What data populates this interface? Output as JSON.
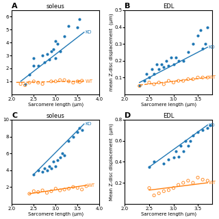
{
  "chart_data": [
    {
      "type": "scatter",
      "panel_label": "A",
      "title": "soleus",
      "xlabel": "Sarcomere length (μm)",
      "xlim": [
        2.0,
        4.0
      ],
      "ylim": [
        0.0,
        6.5
      ],
      "xticks": [
        {
          "value": 2,
          "label": "2.0"
        },
        2.5,
        {
          "value": 3,
          "label": "3.0"
        },
        3.5,
        {
          "value": 4,
          "label": "4.0"
        }
      ],
      "yticks": [
        1,
        2,
        3,
        4,
        5,
        6
      ],
      "series": [
        {
          "name": "KO",
          "type": "scatter",
          "marker": "filled",
          "x": [
            2.3,
            2.4,
            2.5,
            2.5,
            2.6,
            2.7,
            2.75,
            2.8,
            2.85,
            2.9,
            2.95,
            3.0,
            3.0,
            3.05,
            3.1,
            3.2,
            3.3,
            3.5,
            3.55
          ],
          "values": [
            0.8,
            1.5,
            2.2,
            2.8,
            2.2,
            3.0,
            2.5,
            3.1,
            2.7,
            3.3,
            3.5,
            4.1,
            2.8,
            3.9,
            3.3,
            4.5,
            5.3,
            5.2,
            5.8
          ]
        },
        {
          "name": "WT",
          "type": "scatter",
          "marker": "open",
          "x": [
            2.2,
            2.3,
            2.4,
            2.5,
            2.6,
            2.7,
            2.9,
            3.0,
            3.1,
            3.2,
            3.3,
            3.4,
            3.5,
            3.55,
            3.6
          ],
          "values": [
            0.8,
            0.7,
            0.9,
            1.0,
            0.9,
            0.8,
            1.0,
            1.0,
            1.1,
            1.1,
            1.0,
            0.9,
            1.0,
            0.95,
            1.05
          ]
        },
        {
          "name": "KO",
          "type": "line",
          "line_style": "solid",
          "x": [
            2.2,
            3.65
          ],
          "values": [
            1.0,
            4.8
          ]
        },
        {
          "name": "WT",
          "type": "line",
          "line_style": "dashed",
          "x": [
            2.1,
            3.65
          ],
          "values": [
            0.92,
            1.02
          ]
        }
      ],
      "annotations": [
        {
          "text": "KO",
          "x": 3.68,
          "y": 4.8
        },
        {
          "text": "WT",
          "x": 3.68,
          "y": 1.02
        }
      ]
    },
    {
      "type": "scatter",
      "panel_label": "B",
      "title": "EDL",
      "xlabel": "Sarcomere length (μm)",
      "ylabel": "mean Z-disc displacement  (μm)",
      "xlim": [
        2.0,
        3.8
      ],
      "ylim": [
        0.0,
        0.5
      ],
      "xticks": [
        {
          "value": 2,
          "label": "2.0"
        },
        2.5,
        {
          "value": 3,
          "label": "3.0"
        },
        3.5
      ],
      "yticks": [
        0.1,
        0.2,
        0.3,
        0.4,
        0.5
      ],
      "series": [
        {
          "name": "KO",
          "type": "scatter",
          "marker": "filled",
          "x": [
            2.3,
            2.4,
            2.45,
            2.5,
            2.55,
            2.6,
            2.65,
            2.7,
            2.75,
            2.8,
            2.85,
            2.9,
            2.95,
            3.0,
            3.05,
            3.1,
            3.2,
            3.3,
            3.4,
            3.5,
            3.55,
            3.6,
            3.65,
            3.7
          ],
          "values": [
            0.05,
            0.08,
            0.12,
            0.1,
            0.15,
            0.12,
            0.18,
            0.15,
            0.18,
            0.16,
            0.2,
            0.17,
            0.22,
            0.18,
            0.22,
            0.2,
            0.2,
            0.25,
            0.3,
            0.35,
            0.38,
            0.27,
            0.3,
            0.4
          ]
        },
        {
          "name": "WT",
          "type": "scatter",
          "marker": "open",
          "x": [
            2.3,
            2.5,
            2.6,
            2.7,
            2.8,
            2.9,
            3.0,
            3.1,
            3.2,
            3.3,
            3.4,
            3.5,
            3.6,
            3.7
          ],
          "values": [
            0.05,
            0.07,
            0.06,
            0.07,
            0.06,
            0.08,
            0.07,
            0.08,
            0.08,
            0.09,
            0.09,
            0.1,
            0.1,
            0.1
          ]
        },
        {
          "name": "KO",
          "type": "line",
          "line_style": "solid",
          "x": [
            2.3,
            3.7
          ],
          "values": [
            0.07,
            0.28
          ]
        },
        {
          "name": "WT",
          "type": "line",
          "line_style": "dashed",
          "x": [
            2.3,
            3.7
          ],
          "values": [
            0.055,
            0.1
          ]
        }
      ],
      "annotations": [
        {
          "text": "KO",
          "x": 3.72,
          "y": 0.28
        },
        {
          "text": "WT",
          "x": 3.72,
          "y": 0.1
        }
      ]
    },
    {
      "type": "scatter",
      "panel_label": "C",
      "title": "soleus",
      "xlabel": "Sarcomere length (μm)",
      "xlim": [
        2.0,
        4.0
      ],
      "ylim": [
        0.0,
        10.0
      ],
      "xticks": [
        {
          "value": 2,
          "label": "2.0"
        },
        2.5,
        {
          "value": 3,
          "label": "3.0"
        },
        3.5,
        {
          "value": 4,
          "label": "4.0"
        }
      ],
      "yticks": [
        2,
        4,
        6,
        8,
        10
      ],
      "series": [
        {
          "name": "KO",
          "type": "scatter",
          "marker": "filled",
          "x": [
            2.5,
            2.6,
            2.7,
            2.75,
            2.8,
            2.85,
            2.9,
            2.95,
            3.0,
            3.05,
            3.1,
            3.15,
            3.2,
            3.3,
            3.4,
            3.5,
            3.55,
            3.6
          ],
          "values": [
            3.5,
            4.0,
            3.8,
            4.2,
            4.0,
            4.5,
            4.2,
            5.0,
            4.5,
            5.2,
            5.5,
            6.0,
            5.8,
            7.5,
            8.0,
            8.5,
            9.0,
            8.8
          ]
        },
        {
          "name": "WT",
          "type": "scatter",
          "marker": "open",
          "x": [
            2.4,
            2.5,
            2.6,
            2.7,
            2.8,
            2.9,
            3.0,
            3.1,
            3.2,
            3.3,
            3.4,
            3.5,
            3.6,
            3.7
          ],
          "values": [
            1.2,
            1.5,
            1.4,
            1.6,
            1.3,
            1.5,
            1.8,
            1.6,
            1.7,
            1.8,
            2.0,
            1.9,
            1.7,
            2.1
          ]
        },
        {
          "name": "KO",
          "type": "line",
          "line_style": "solid",
          "x": [
            2.5,
            3.65
          ],
          "values": [
            3.5,
            9.5
          ]
        },
        {
          "name": "WT",
          "type": "line",
          "line_style": "solid",
          "x": [
            2.4,
            3.7
          ],
          "values": [
            1.2,
            2.2
          ]
        }
      ],
      "annotations": [
        {
          "text": "KO",
          "x": 3.68,
          "y": 9.5
        },
        {
          "text": "WT",
          "x": 3.72,
          "y": 2.2
        }
      ]
    },
    {
      "type": "scatter",
      "panel_label": "D",
      "title": "EDL",
      "xlabel": "Sarcomere length (μm)",
      "ylabel": "Mean Z-disc displacement  (μm)",
      "xlim": [
        2.0,
        3.8
      ],
      "ylim": [
        0.0,
        0.8
      ],
      "xticks": [
        {
          "value": 2,
          "label": "2.0"
        },
        2.5,
        {
          "value": 3,
          "label": "3.0"
        },
        3.5
      ],
      "yticks": [
        0.2,
        0.4,
        0.6,
        0.8
      ],
      "series": [
        {
          "name": "KO",
          "type": "scatter",
          "marker": "filled",
          "x": [
            2.5,
            2.6,
            2.8,
            2.9,
            3.0,
            3.05,
            3.1,
            3.15,
            3.2,
            3.25,
            3.3,
            3.35,
            3.4,
            3.5,
            3.6,
            3.7,
            3.75
          ],
          "values": [
            0.35,
            0.4,
            0.38,
            0.42,
            0.44,
            0.5,
            0.45,
            0.55,
            0.5,
            0.6,
            0.55,
            0.6,
            0.65,
            0.68,
            0.7,
            0.72,
            0.75
          ]
        },
        {
          "name": "WT",
          "type": "scatter",
          "marker": "open",
          "x": [
            2.5,
            2.6,
            2.7,
            2.8,
            2.9,
            3.0,
            3.1,
            3.2,
            3.3,
            3.4,
            3.5,
            3.6,
            3.7
          ],
          "values": [
            0.15,
            0.08,
            0.1,
            0.12,
            0.13,
            0.15,
            0.18,
            0.2,
            0.22,
            0.2,
            0.25,
            0.23,
            0.22
          ]
        },
        {
          "name": "KO",
          "type": "line",
          "line_style": "solid",
          "x": [
            2.5,
            3.7
          ],
          "values": [
            0.35,
            0.75
          ]
        },
        {
          "name": "WT",
          "type": "line",
          "line_style": "solid",
          "x": [
            2.5,
            3.7
          ],
          "values": [
            0.13,
            0.2
          ]
        }
      ],
      "annotations": [
        {
          "text": "KO",
          "x": 3.72,
          "y": 0.75
        },
        {
          "text": "WT",
          "x": 3.72,
          "y": 0.2
        }
      ]
    }
  ]
}
